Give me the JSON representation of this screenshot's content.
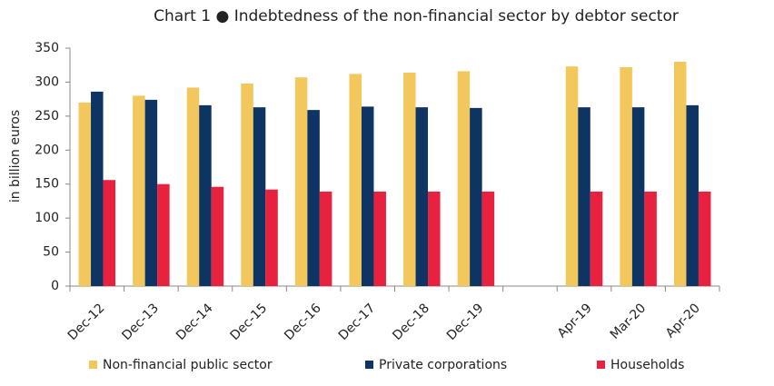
{
  "chart_data": {
    "type": "bar",
    "title": "Chart 1 ● Indebtedness of the non-financial sector by debtor sector",
    "y_label": "in billion euros",
    "categories": [
      "Dec-12",
      "Dec-13",
      "Dec-14",
      "Dec-15",
      "Dec-16",
      "Dec-17",
      "Dec-18",
      "Dec-19",
      null,
      "Apr-19",
      "Mar-20",
      "Apr-20"
    ],
    "series": [
      {
        "name": "Non-financial public sector",
        "color": "#f2c75c",
        "values": [
          270,
          280,
          292,
          298,
          307,
          312,
          314,
          316,
          null,
          323,
          322,
          330
        ]
      },
      {
        "name": "Private corporations",
        "color": "#0d3462",
        "values": [
          286,
          274,
          266,
          263,
          259,
          264,
          263,
          262,
          null,
          263,
          263,
          266
        ]
      },
      {
        "name": "Households",
        "color": "#e8213f",
        "values": [
          156,
          150,
          146,
          142,
          139,
          139,
          139,
          139,
          null,
          139,
          139,
          139
        ]
      }
    ],
    "ylim": [
      0,
      350
    ],
    "yticks": [
      0,
      50,
      100,
      150,
      200,
      250,
      300,
      350
    ],
    "grid": false,
    "legend": "bottom"
  }
}
